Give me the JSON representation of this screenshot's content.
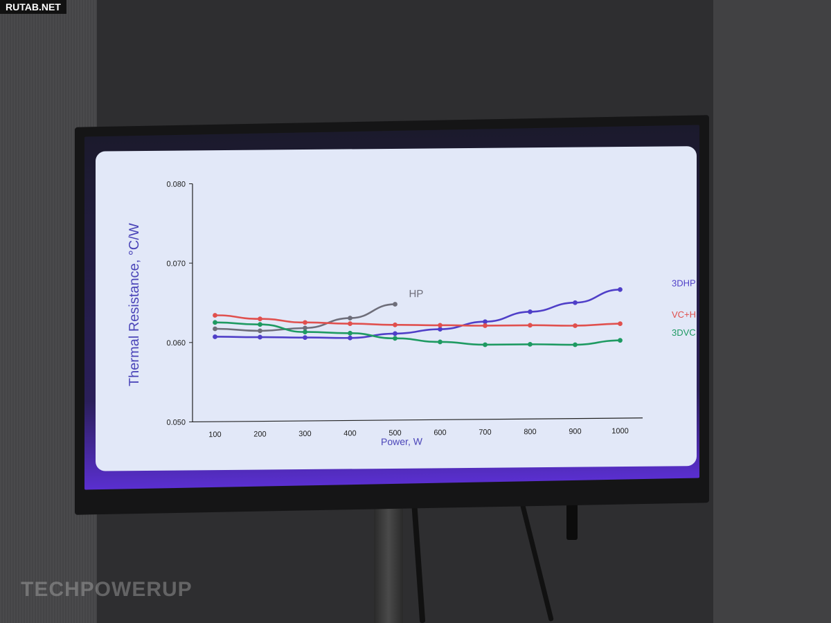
{
  "badge": "RUTAB.NET",
  "watermark": "TECHPOWERUP",
  "chart_data": {
    "type": "line",
    "ylabel": "Thermal Resistance, °C/W",
    "xlabel": "Power, W",
    "x": [
      100,
      200,
      300,
      400,
      500,
      600,
      700,
      800,
      900,
      1000
    ],
    "xticks": [
      "100",
      "200",
      "300",
      "400",
      "500",
      "600",
      "700",
      "800",
      "900",
      "1000"
    ],
    "ylim": [
      0.05,
      0.08
    ],
    "yticks": [
      "0.050",
      "0.060",
      "0.070",
      "0.080"
    ],
    "series": [
      {
        "name": "HP",
        "color": "#6e6e7a",
        "x": [
          100,
          200,
          300,
          400,
          500
        ],
        "values": [
          0.0617,
          0.0614,
          0.0617,
          0.0629,
          0.0646
        ]
      },
      {
        "name": "3DHP",
        "color": "#4f3fc8",
        "x": [
          100,
          200,
          300,
          400,
          500,
          600,
          700,
          800,
          900,
          1000
        ],
        "values": [
          0.0607,
          0.0606,
          0.0605,
          0.0604,
          0.0609,
          0.0614,
          0.0623,
          0.0635,
          0.0646,
          0.0662
        ]
      },
      {
        "name": "VC+HP",
        "color": "#e0504e",
        "x": [
          100,
          200,
          300,
          400,
          500,
          600,
          700,
          800,
          900,
          1000
        ],
        "values": [
          0.0634,
          0.0629,
          0.0624,
          0.0622,
          0.062,
          0.0619,
          0.0618,
          0.0618,
          0.0617,
          0.0619
        ]
      },
      {
        "name": "3DVC",
        "color": "#1e9a62",
        "x": [
          100,
          200,
          300,
          400,
          500,
          600,
          700,
          800,
          900,
          1000
        ],
        "values": [
          0.0625,
          0.0622,
          0.0612,
          0.061,
          0.0603,
          0.0598,
          0.0594,
          0.0594,
          0.0593,
          0.0598
        ]
      }
    ]
  }
}
